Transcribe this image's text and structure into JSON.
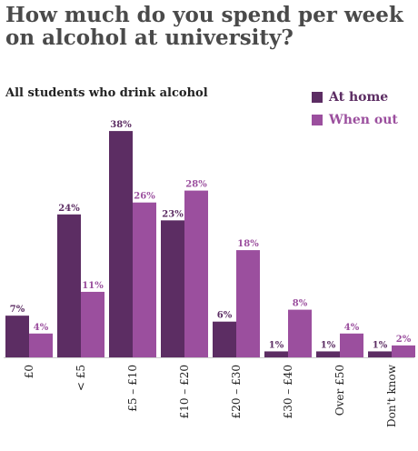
{
  "title_line1": "How much do you spend per week",
  "title_line2": "on alcohol at university?",
  "subtitle": "All students who drink alcohol",
  "chart_data": {
    "type": "bar",
    "categories": [
      "£0",
      "< £5",
      "£5 – £10",
      "£10 – £20",
      "£20 – £30",
      "£30 – £40",
      "Over £50",
      "Don't know"
    ],
    "series": [
      {
        "name": "At home",
        "color": "#5c2d63",
        "values": [
          7,
          24,
          38,
          23,
          6,
          1,
          1,
          1
        ]
      },
      {
        "name": "When out",
        "color": "#9b4f9e",
        "values": [
          4,
          11,
          26,
          28,
          18,
          8,
          4,
          2
        ]
      }
    ],
    "value_suffix": "%",
    "ylim": [
      0,
      40
    ],
    "grid": false,
    "legend": "top-right"
  }
}
